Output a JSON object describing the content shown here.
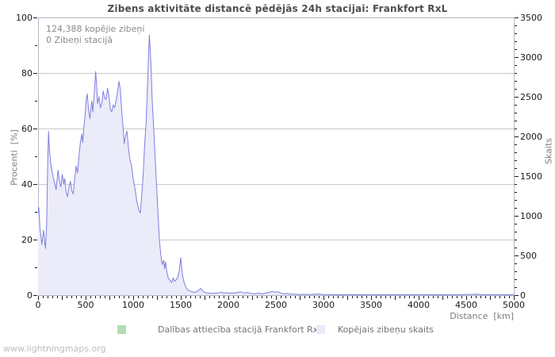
{
  "page": {
    "title": "Zibens aktivitāte distancē pēdējās 24h stacijai: Frankfort RxL",
    "watermark": "www.lightningmaps.org"
  },
  "annotation": {
    "total_strikes_label": "124,388 kopējie zibeņi",
    "station_strikes_label": "0 Zibeņi stacijā"
  },
  "legend": [
    {
      "label": "Dalības attiecība stacijā Frankfort RxL",
      "color": "#b3dcb3"
    },
    {
      "label": "Kopējais zibeņu skaits",
      "color": "#e9e9f8"
    }
  ],
  "colors": {
    "line": "#7e7ee0",
    "fill": "#ebebf9",
    "participation": "#b3dcb3",
    "grid": "#c9c9c9",
    "border": "#b6b6c8",
    "tick": "#1a1a1a",
    "tick_label": "#1a1a1a"
  },
  "chart_data": {
    "type": "area",
    "title": "Zibens aktivitāte distancē pēdējās 24h stacijai: Frankfort RxL",
    "xlabel": "Distance  [km]",
    "ylabel_left": "Procenti  [%]",
    "ylabel_right": "Skaits",
    "x_range": [
      0,
      5000
    ],
    "y_left_range": [
      0,
      100
    ],
    "y_right_range": [
      0,
      3500
    ],
    "x_ticks": [
      0,
      500,
      1000,
      1500,
      2000,
      2500,
      3000,
      3500,
      4000,
      4500,
      5000
    ],
    "y_left_ticks": [
      0,
      20,
      40,
      60,
      80,
      100
    ],
    "y_right_ticks": [
      0,
      500,
      1000,
      1500,
      2000,
      2500,
      3000,
      3500
    ],
    "grid_pct": [
      20,
      40,
      60,
      80
    ],
    "legend_position": "bottom",
    "series": [
      {
        "name": "Dalības attiecība stacijā Frankfort RxL",
        "axis": "left",
        "type": "line",
        "color": "#b3dcb3",
        "points": [
          [
            0,
            0
          ],
          [
            5000,
            0
          ]
        ]
      },
      {
        "name": "Kopējais zibeņu skaits",
        "axis": "right",
        "type": "area",
        "color": "#7e7ee0",
        "fill": "#ebebf9",
        "points": [
          [
            0,
            1033
          ],
          [
            8,
            1103
          ],
          [
            20,
            840
          ],
          [
            30,
            753
          ],
          [
            40,
            637
          ],
          [
            58,
            819
          ],
          [
            70,
            665
          ],
          [
            78,
            588
          ],
          [
            90,
            875
          ],
          [
            100,
            1575
          ],
          [
            110,
            2065
          ],
          [
            120,
            1820
          ],
          [
            135,
            1645
          ],
          [
            150,
            1540
          ],
          [
            165,
            1453
          ],
          [
            190,
            1330
          ],
          [
            210,
            1575
          ],
          [
            225,
            1435
          ],
          [
            240,
            1365
          ],
          [
            255,
            1523
          ],
          [
            270,
            1400
          ],
          [
            280,
            1470
          ],
          [
            295,
            1295
          ],
          [
            310,
            1243
          ],
          [
            325,
            1365
          ],
          [
            340,
            1435
          ],
          [
            355,
            1313
          ],
          [
            370,
            1278
          ],
          [
            385,
            1470
          ],
          [
            400,
            1628
          ],
          [
            415,
            1540
          ],
          [
            430,
            1750
          ],
          [
            445,
            1925
          ],
          [
            460,
            2030
          ],
          [
            470,
            1925
          ],
          [
            480,
            2100
          ],
          [
            495,
            2275
          ],
          [
            505,
            2450
          ],
          [
            517,
            2538
          ],
          [
            530,
            2345
          ],
          [
            545,
            2223
          ],
          [
            555,
            2345
          ],
          [
            565,
            2450
          ],
          [
            575,
            2310
          ],
          [
            590,
            2520
          ],
          [
            605,
            2818
          ],
          [
            615,
            2660
          ],
          [
            625,
            2415
          ],
          [
            640,
            2503
          ],
          [
            655,
            2363
          ],
          [
            670,
            2415
          ],
          [
            685,
            2573
          ],
          [
            700,
            2485
          ],
          [
            715,
            2468
          ],
          [
            730,
            2608
          ],
          [
            745,
            2520
          ],
          [
            760,
            2345
          ],
          [
            775,
            2310
          ],
          [
            790,
            2398
          ],
          [
            805,
            2363
          ],
          [
            820,
            2450
          ],
          [
            835,
            2555
          ],
          [
            850,
            2695
          ],
          [
            865,
            2590
          ],
          [
            880,
            2310
          ],
          [
            895,
            2100
          ],
          [
            905,
            1908
          ],
          [
            920,
            2013
          ],
          [
            935,
            2065
          ],
          [
            950,
            1855
          ],
          [
            965,
            1715
          ],
          [
            980,
            1645
          ],
          [
            1000,
            1470
          ],
          [
            1020,
            1330
          ],
          [
            1040,
            1173
          ],
          [
            1060,
            1068
          ],
          [
            1075,
            1033
          ],
          [
            1090,
            1260
          ],
          [
            1105,
            1523
          ],
          [
            1120,
            1890
          ],
          [
            1135,
            2170
          ],
          [
            1150,
            2625
          ],
          [
            1160,
            2975
          ],
          [
            1170,
            3280
          ],
          [
            1180,
            3080
          ],
          [
            1190,
            2800
          ],
          [
            1200,
            2450
          ],
          [
            1210,
            2223
          ],
          [
            1220,
            1995
          ],
          [
            1230,
            1750
          ],
          [
            1245,
            1400
          ],
          [
            1260,
            1050
          ],
          [
            1275,
            700
          ],
          [
            1290,
            508
          ],
          [
            1305,
            385
          ],
          [
            1320,
            438
          ],
          [
            1330,
            333
          ],
          [
            1340,
            420
          ],
          [
            1355,
            280
          ],
          [
            1370,
            210
          ],
          [
            1390,
            182
          ],
          [
            1405,
            158
          ],
          [
            1420,
            217
          ],
          [
            1435,
            175
          ],
          [
            1450,
            193
          ],
          [
            1470,
            228
          ],
          [
            1485,
            315
          ],
          [
            1500,
            473
          ],
          [
            1515,
            280
          ],
          [
            1530,
            182
          ],
          [
            1550,
            105
          ],
          [
            1570,
            70
          ],
          [
            1590,
            53
          ],
          [
            1620,
            42
          ],
          [
            1650,
            35
          ],
          [
            1680,
            53
          ],
          [
            1710,
            84
          ],
          [
            1740,
            42
          ],
          [
            1770,
            28
          ],
          [
            1800,
            25
          ],
          [
            1830,
            21
          ],
          [
            1860,
            25
          ],
          [
            1900,
            28
          ],
          [
            1930,
            39
          ],
          [
            1950,
            25
          ],
          [
            1980,
            32
          ],
          [
            2010,
            21
          ],
          [
            2040,
            28
          ],
          [
            2070,
            25
          ],
          [
            2100,
            35
          ],
          [
            2130,
            42
          ],
          [
            2160,
            28
          ],
          [
            2200,
            32
          ],
          [
            2240,
            21
          ],
          [
            2280,
            18
          ],
          [
            2320,
            25
          ],
          [
            2360,
            18
          ],
          [
            2400,
            28
          ],
          [
            2430,
            35
          ],
          [
            2460,
            46
          ],
          [
            2490,
            39
          ],
          [
            2520,
            42
          ],
          [
            2550,
            25
          ],
          [
            2580,
            18
          ],
          [
            2620,
            21
          ],
          [
            2650,
            14
          ],
          [
            2700,
            11
          ],
          [
            2750,
            7
          ],
          [
            2800,
            11
          ],
          [
            2850,
            7
          ],
          [
            2900,
            11
          ],
          [
            2950,
            14
          ],
          [
            3000,
            7
          ],
          [
            3100,
            5
          ],
          [
            3200,
            4
          ],
          [
            3300,
            5
          ],
          [
            3400,
            4
          ],
          [
            3500,
            4
          ],
          [
            3600,
            4
          ],
          [
            3700,
            4
          ],
          [
            3800,
            5
          ],
          [
            3900,
            4
          ],
          [
            4000,
            7
          ],
          [
            4100,
            4
          ],
          [
            4200,
            4
          ],
          [
            4300,
            4
          ],
          [
            4400,
            4
          ],
          [
            4500,
            9
          ],
          [
            4600,
            11
          ],
          [
            4700,
            5
          ],
          [
            4800,
            7
          ],
          [
            4900,
            4
          ],
          [
            5000,
            4
          ]
        ]
      }
    ]
  }
}
